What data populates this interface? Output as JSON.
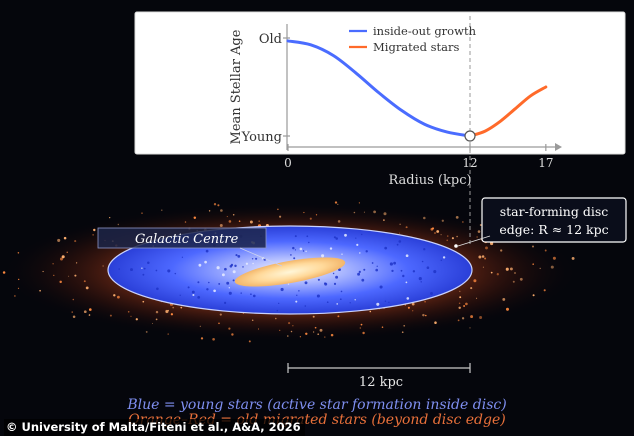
{
  "chart_data": {
    "type": "line",
    "xlabel": "Radius (kpc)",
    "ylabel": "Mean Stellar Age",
    "xticks": [
      0,
      12,
      17
    ],
    "yticks": [
      "Young",
      "Old"
    ],
    "xlim": [
      0,
      17
    ],
    "ylim": [
      0,
      1
    ],
    "series": [
      {
        "name": "inside-out growth",
        "color": "#4a6cff",
        "x": [
          0,
          1.5,
          3,
          4.5,
          6,
          7.5,
          9,
          10.5,
          12
        ],
        "y": [
          0.97,
          0.93,
          0.82,
          0.64,
          0.44,
          0.26,
          0.12,
          0.04,
          0.0
        ]
      },
      {
        "name": "Migrated stars",
        "color": "#ff6a2a",
        "x": [
          12,
          13,
          14,
          15,
          16,
          17
        ],
        "y": [
          0.0,
          0.05,
          0.15,
          0.28,
          0.41,
          0.5
        ]
      }
    ],
    "marker": {
      "x": 12,
      "y": 0.0
    }
  },
  "labels": {
    "galactic_centre": "Galactic Centre",
    "disc_edge_line1": "star-forming disc",
    "disc_edge_line2": "edge: R ≈ 12 kpc",
    "scale_bar": "12 kpc"
  },
  "captions": {
    "blue": "Blue = young stars (active star formation inside disc)",
    "orange": "Orange–Red = old migrated stars (beyond disc edge)"
  },
  "credit": "© University of Malta/Fiteni et al., A&A, 2026",
  "colors": {
    "young": "#4a6cff",
    "old": "#ff6a2a",
    "caption_blue": "#7f8ff0",
    "caption_orange": "#e8703a"
  }
}
